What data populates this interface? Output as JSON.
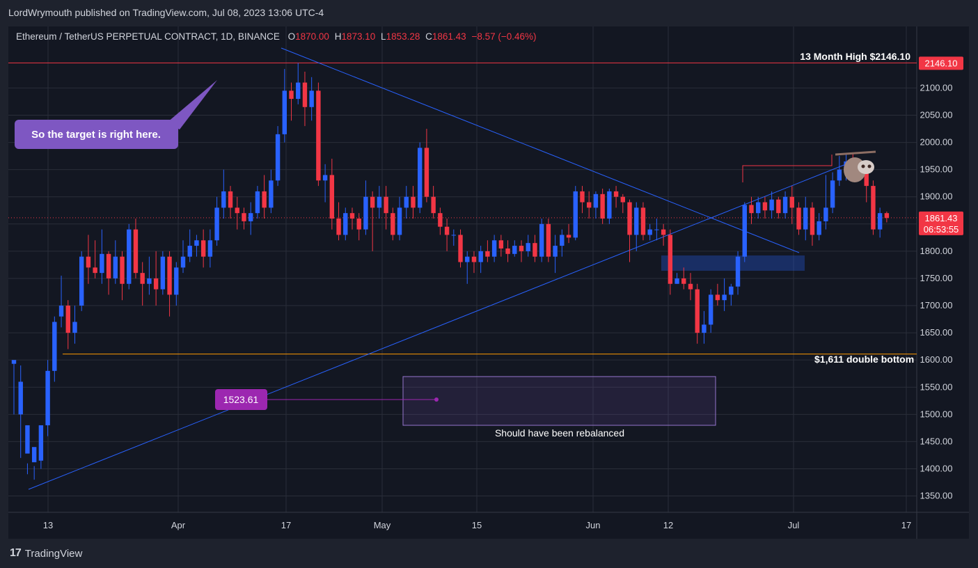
{
  "header": {
    "publisher": "LordWrymouth published on TradingView.com, Jul 08, 2023 13:06 UTC-4"
  },
  "legend": {
    "symbol": "Ethereum / TetherUS PERPETUAL CONTRACT, 1D, BINANCE",
    "o_label": "O",
    "o_value": "1870.00",
    "h_label": "H",
    "h_value": "1873.10",
    "l_label": "L",
    "l_value": "1853.28",
    "c_label": "C",
    "c_value": "1861.43",
    "change": "−8.57 (−0.46%)"
  },
  "footer": {
    "brand": "TradingView",
    "logo_mark": "17"
  },
  "colors": {
    "up": "#2962ff",
    "down": "#f23645",
    "background": "#131722",
    "grid": "#2a2e39",
    "trendline": "#2962ff",
    "support": "#ff9800",
    "callout": "#7e57c2",
    "label_purple": "#9c27b0"
  },
  "chart_data": {
    "type": "candlestick",
    "ylim": [
      1320,
      2185
    ],
    "yticks": [
      1350,
      1400,
      1450,
      1500,
      1550,
      1600,
      1650,
      1700,
      1750,
      1800,
      1850,
      1900,
      1950,
      2000,
      2050,
      2100
    ],
    "xtick_labels": [
      "13",
      "Apr",
      "17",
      "May",
      "15",
      "Jun",
      "12",
      "Jul",
      "17"
    ],
    "current_price": "1861.43",
    "countdown": "06:53:55",
    "high_price_label": "2146.10",
    "annotations": {
      "high_text": "13 Month High $2146.10",
      "support_text": "$1,611 double bottom",
      "callout_text": "So the target is right here.",
      "price_label": "1523.61",
      "rebalance_text": "Should have been rebalanced",
      "sloth_icon": "sloth-emoji"
    },
    "candles": [
      [
        1593,
        1600,
        1595,
        1500
      ],
      [
        1500,
        1560,
        1590,
        1420
      ],
      [
        1428,
        1480,
        1390,
        1410
      ],
      [
        1412,
        1440,
        1380,
        1405
      ],
      [
        1415,
        1480,
        1420,
        1400
      ],
      [
        1480,
        1580,
        1600,
        1460
      ],
      [
        1580,
        1670,
        1680,
        1560
      ],
      [
        1680,
        1700,
        1755,
        1660
      ],
      [
        1700,
        1650,
        1710,
        1620
      ],
      [
        1650,
        1670,
        1700,
        1630
      ],
      [
        1700,
        1790,
        1800,
        1690
      ],
      [
        1790,
        1770,
        1830,
        1740
      ],
      [
        1770,
        1760,
        1820,
        1750
      ],
      [
        1760,
        1795,
        1840,
        1740
      ],
      [
        1795,
        1750,
        1800,
        1720
      ],
      [
        1750,
        1790,
        1820,
        1740
      ],
      [
        1790,
        1740,
        1800,
        1710
      ],
      [
        1740,
        1840,
        1850,
        1730
      ],
      [
        1840,
        1760,
        1860,
        1750
      ],
      [
        1760,
        1740,
        1780,
        1700
      ],
      [
        1740,
        1750,
        1790,
        1720
      ],
      [
        1750,
        1730,
        1800,
        1700
      ],
      [
        1730,
        1790,
        1800,
        1720
      ],
      [
        1790,
        1720,
        1800,
        1680
      ],
      [
        1720,
        1770,
        1780,
        1700
      ],
      [
        1770,
        1790,
        1820,
        1760
      ],
      [
        1790,
        1810,
        1840,
        1780
      ],
      [
        1810,
        1820,
        1830,
        1790
      ],
      [
        1820,
        1790,
        1840,
        1770
      ],
      [
        1790,
        1820,
        1840,
        1770
      ],
      [
        1820,
        1880,
        1900,
        1810
      ],
      [
        1880,
        1910,
        1950,
        1860
      ],
      [
        1910,
        1880,
        1920,
        1860
      ],
      [
        1880,
        1870,
        1900,
        1840
      ],
      [
        1870,
        1855,
        1880,
        1840
      ],
      [
        1855,
        1870,
        1890,
        1830
      ],
      [
        1870,
        1910,
        1920,
        1860
      ],
      [
        1910,
        1880,
        1940,
        1860
      ],
      [
        1880,
        1930,
        1950,
        1870
      ],
      [
        1930,
        2015,
        2030,
        1920
      ],
      [
        2015,
        2095,
        2135,
        2000
      ],
      [
        2095,
        2080,
        2110,
        2040
      ],
      [
        2080,
        2110,
        2146,
        2070
      ],
      [
        2110,
        2065,
        2130,
        2030
      ],
      [
        2065,
        2095,
        2120,
        2040
      ],
      [
        2095,
        1930,
        2110,
        1920
      ],
      [
        1930,
        1940,
        1960,
        1890
      ],
      [
        1940,
        1860,
        1970,
        1840
      ],
      [
        1860,
        1830,
        1890,
        1820
      ],
      [
        1830,
        1870,
        1880,
        1820
      ],
      [
        1870,
        1860,
        1880,
        1840
      ],
      [
        1860,
        1840,
        1870,
        1820
      ],
      [
        1840,
        1900,
        1930,
        1830
      ],
      [
        1900,
        1880,
        1910,
        1800
      ],
      [
        1880,
        1900,
        1920,
        1860
      ],
      [
        1900,
        1870,
        1920,
        1840
      ],
      [
        1870,
        1830,
        1880,
        1820
      ],
      [
        1830,
        1880,
        1900,
        1820
      ],
      [
        1880,
        1900,
        1920,
        1860
      ],
      [
        1900,
        1880,
        1920,
        1860
      ],
      [
        1880,
        1990,
        2000,
        1870
      ],
      [
        1990,
        1900,
        2025,
        1890
      ],
      [
        1900,
        1870,
        1920,
        1860
      ],
      [
        1870,
        1845,
        1880,
        1830
      ],
      [
        1845,
        1830,
        1860,
        1800
      ],
      [
        1830,
        1830,
        1840,
        1810
      ],
      [
        1830,
        1780,
        1840,
        1770
      ],
      [
        1780,
        1790,
        1800,
        1740
      ],
      [
        1790,
        1780,
        1800,
        1760
      ],
      [
        1780,
        1800,
        1810,
        1760
      ],
      [
        1800,
        1790,
        1820,
        1780
      ],
      [
        1790,
        1820,
        1830,
        1780
      ],
      [
        1820,
        1805,
        1830,
        1790
      ],
      [
        1805,
        1795,
        1820,
        1780
      ],
      [
        1795,
        1810,
        1820,
        1790
      ],
      [
        1810,
        1800,
        1820,
        1780
      ],
      [
        1800,
        1815,
        1830,
        1790
      ],
      [
        1815,
        1790,
        1830,
        1780
      ],
      [
        1790,
        1850,
        1860,
        1780
      ],
      [
        1850,
        1790,
        1860,
        1780
      ],
      [
        1790,
        1810,
        1830,
        1760
      ],
      [
        1810,
        1830,
        1840,
        1790
      ],
      [
        1830,
        1825,
        1850,
        1815
      ],
      [
        1825,
        1910,
        1920,
        1820
      ],
      [
        1910,
        1890,
        1920,
        1870
      ],
      [
        1890,
        1880,
        1910,
        1860
      ],
      [
        1880,
        1905,
        1910,
        1860
      ],
      [
        1905,
        1860,
        1915,
        1850
      ],
      [
        1860,
        1910,
        1915,
        1850
      ],
      [
        1910,
        1900,
        1920,
        1880
      ],
      [
        1900,
        1890,
        1905,
        1870
      ],
      [
        1890,
        1830,
        1895,
        1780
      ],
      [
        1830,
        1880,
        1890,
        1800
      ],
      [
        1880,
        1830,
        1890,
        1820
      ],
      [
        1830,
        1840,
        1850,
        1820
      ],
      [
        1840,
        1840,
        1860,
        1820
      ],
      [
        1840,
        1830,
        1850,
        1810
      ],
      [
        1830,
        1740,
        1840,
        1720
      ],
      [
        1740,
        1750,
        1760,
        1740
      ],
      [
        1750,
        1740,
        1770,
        1730
      ],
      [
        1740,
        1730,
        1760,
        1710
      ],
      [
        1730,
        1650,
        1740,
        1630
      ],
      [
        1650,
        1665,
        1690,
        1630
      ],
      [
        1665,
        1720,
        1730,
        1650
      ],
      [
        1720,
        1710,
        1740,
        1700
      ],
      [
        1710,
        1720,
        1750,
        1690
      ],
      [
        1720,
        1735,
        1740,
        1700
      ],
      [
        1735,
        1790,
        1800,
        1720
      ],
      [
        1790,
        1885,
        1890,
        1780
      ],
      [
        1885,
        1870,
        1900,
        1850
      ],
      [
        1870,
        1890,
        1900,
        1860
      ],
      [
        1890,
        1875,
        1900,
        1860
      ],
      [
        1875,
        1895,
        1910,
        1860
      ],
      [
        1895,
        1870,
        1900,
        1860
      ],
      [
        1870,
        1900,
        1910,
        1860
      ],
      [
        1900,
        1880,
        1920,
        1850
      ],
      [
        1880,
        1840,
        1890,
        1830
      ],
      [
        1840,
        1880,
        1900,
        1820
      ],
      [
        1880,
        1830,
        1890,
        1810
      ],
      [
        1830,
        1855,
        1870,
        1820
      ],
      [
        1855,
        1880,
        1940,
        1840
      ],
      [
        1880,
        1930,
        1945,
        1870
      ],
      [
        1930,
        1950,
        1975,
        1920
      ],
      [
        1950,
        1965,
        1980,
        1930
      ],
      [
        1965,
        1950,
        1980,
        1930
      ],
      [
        1950,
        1945,
        1960,
        1930
      ],
      [
        1945,
        1920,
        1960,
        1890
      ],
      [
        1920,
        1840,
        1930,
        1830
      ],
      [
        1840,
        1870,
        1880,
        1825
      ],
      [
        1870,
        1861,
        1873,
        1853
      ]
    ]
  }
}
